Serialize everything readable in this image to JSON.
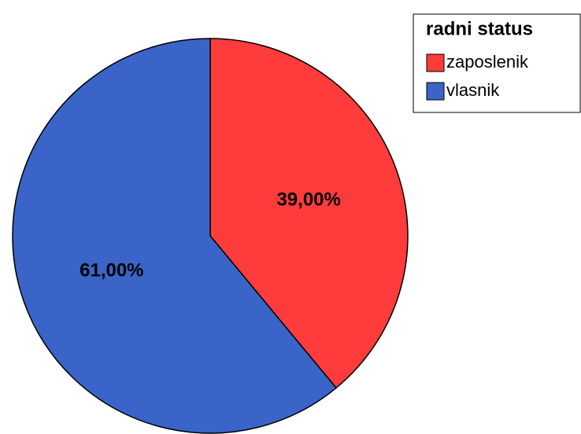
{
  "chart_data": {
    "type": "pie",
    "legend_title": "radni status",
    "categories": [
      "zaposlenik",
      "vlasnik"
    ],
    "values": [
      39,
      61
    ],
    "value_labels": [
      "39,00%",
      "61,00%"
    ],
    "colors": [
      "#ff3b3b",
      "#3a64c8"
    ],
    "legend": "top-right"
  }
}
